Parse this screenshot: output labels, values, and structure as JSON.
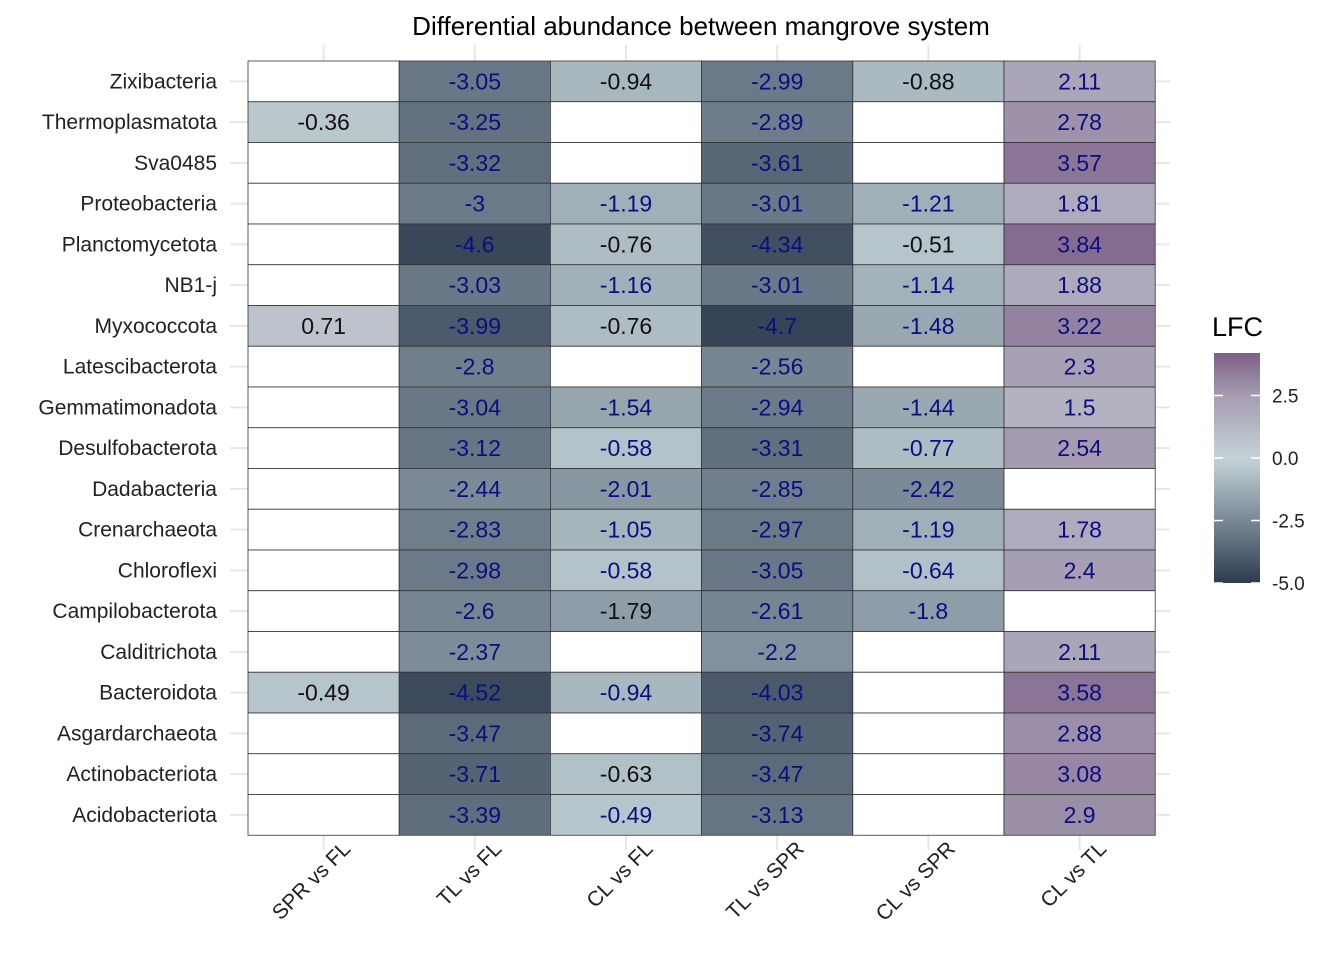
{
  "chart_data": {
    "type": "heatmap",
    "title": "Differential abundance between mangrove system",
    "xlabel": "",
    "ylabel": "",
    "columns": [
      "SPR vs FL",
      "TL vs FL",
      "CL vs FL",
      "TL vs SPR",
      "CL vs SPR",
      "CL vs TL"
    ],
    "rows": [
      "Zixibacteria",
      "Thermoplasmatota",
      "Sva0485",
      "Proteobacteria",
      "Planctomycetota",
      "NB1-j",
      "Myxococcota",
      "Latescibacterota",
      "Gemmatimonadota",
      "Desulfobacterota",
      "Dadabacteria",
      "Crenarchaeota",
      "Chloroflexi",
      "Campilobacterota",
      "Calditrichota",
      "Bacteroidota",
      "Asgardarchaeota",
      "Actinobacteriota",
      "Acidobacteriota"
    ],
    "values": [
      [
        null,
        -3.05,
        -0.94,
        -2.99,
        -0.88,
        2.11
      ],
      [
        -0.36,
        -3.25,
        null,
        -2.89,
        null,
        2.78
      ],
      [
        null,
        -3.32,
        null,
        -3.61,
        null,
        3.57
      ],
      [
        null,
        -3,
        -1.19,
        -3.01,
        -1.21,
        1.81
      ],
      [
        null,
        -4.6,
        -0.76,
        -4.34,
        -0.51,
        3.84
      ],
      [
        null,
        -3.03,
        -1.16,
        -3.01,
        -1.14,
        1.88
      ],
      [
        0.71,
        -3.99,
        -0.76,
        -4.7,
        -1.48,
        3.22
      ],
      [
        null,
        -2.8,
        null,
        -2.56,
        null,
        2.3
      ],
      [
        null,
        -3.04,
        -1.54,
        -2.94,
        -1.44,
        1.5
      ],
      [
        null,
        -3.12,
        -0.58,
        -3.31,
        -0.77,
        2.54
      ],
      [
        null,
        -2.44,
        -2.01,
        -2.85,
        -2.42,
        null
      ],
      [
        null,
        -2.83,
        -1.05,
        -2.97,
        -1.19,
        1.78
      ],
      [
        null,
        -2.98,
        -0.58,
        -3.05,
        -0.64,
        2.4
      ],
      [
        null,
        -2.6,
        -1.79,
        -2.61,
        -1.8,
        null
      ],
      [
        null,
        -2.37,
        null,
        -2.2,
        null,
        2.11
      ],
      [
        -0.49,
        -4.52,
        -0.94,
        -4.03,
        null,
        3.58
      ],
      [
        null,
        -3.47,
        null,
        -3.74,
        null,
        2.88
      ],
      [
        null,
        -3.71,
        -0.63,
        -3.47,
        null,
        3.08
      ],
      [
        null,
        -3.39,
        -0.49,
        -3.13,
        null,
        2.9
      ]
    ],
    "label_colors": [
      [
        "",
        "navy",
        "black",
        "navy",
        "black",
        "navy"
      ],
      [
        "black",
        "navy",
        "",
        "navy",
        "",
        "navy"
      ],
      [
        "",
        "navy",
        "",
        "navy",
        "",
        "navy"
      ],
      [
        "",
        "navy",
        "navy",
        "navy",
        "navy",
        "navy"
      ],
      [
        "",
        "navy",
        "black",
        "navy",
        "black",
        "navy"
      ],
      [
        "",
        "navy",
        "navy",
        "navy",
        "navy",
        "navy"
      ],
      [
        "black",
        "navy",
        "black",
        "navy",
        "navy",
        "navy"
      ],
      [
        "",
        "navy",
        "",
        "navy",
        "",
        "navy"
      ],
      [
        "",
        "navy",
        "navy",
        "navy",
        "navy",
        "navy"
      ],
      [
        "",
        "navy",
        "navy",
        "navy",
        "navy",
        "navy"
      ],
      [
        "",
        "navy",
        "navy",
        "navy",
        "navy",
        ""
      ],
      [
        "",
        "navy",
        "navy",
        "navy",
        "navy",
        "navy"
      ],
      [
        "",
        "navy",
        "navy",
        "navy",
        "navy",
        "navy"
      ],
      [
        "",
        "navy",
        "black",
        "navy",
        "navy",
        ""
      ],
      [
        "",
        "navy",
        "",
        "navy",
        "",
        "navy"
      ],
      [
        "black",
        "navy",
        "navy",
        "navy",
        "",
        "navy"
      ],
      [
        "",
        "navy",
        "",
        "navy",
        "",
        "navy"
      ],
      [
        "",
        "navy",
        "black",
        "navy",
        "",
        "navy"
      ],
      [
        "",
        "navy",
        "navy",
        "navy",
        "",
        "navy"
      ]
    ],
    "legend": {
      "title": "LFC",
      "position": "right",
      "ticks": [
        2.5,
        0.0,
        -2.5,
        -5.0
      ],
      "tick_labels": [
        "2.5",
        "0.0",
        "-2.5",
        "-5.0"
      ],
      "range": [
        -5.0,
        4.2
      ]
    },
    "color_scale": {
      "low": "#2e3b4e",
      "mid_low": "#7a8896",
      "mid": "#c5d3d8",
      "mid_high": "#a59cb1",
      "high": "#7b5f88"
    },
    "colors": {
      "black_label": "#111111",
      "navy_label": "#0d0d80",
      "empty_cell": "#ffffff",
      "grid": "#e6e6e6",
      "cell_border": "#333333"
    },
    "grid": true
  }
}
